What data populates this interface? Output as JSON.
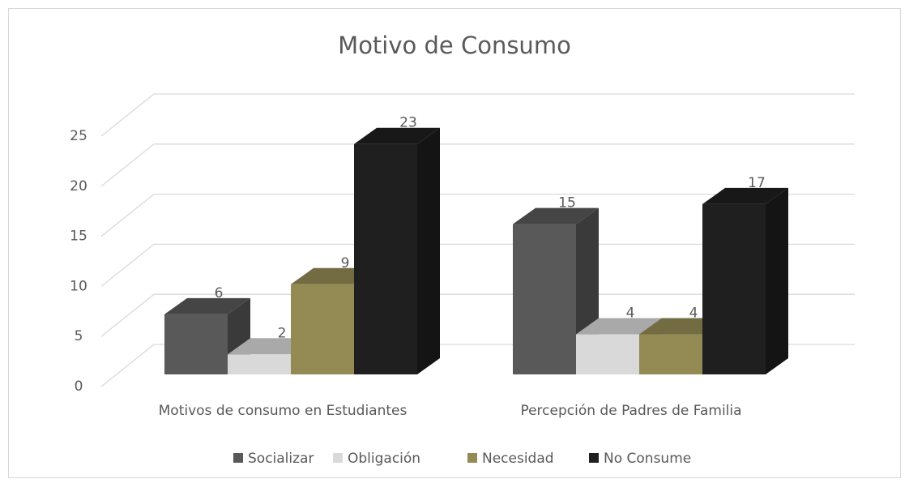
{
  "chart_data": {
    "type": "bar3d",
    "title": "Motivo de Consumo",
    "categories": [
      "Motivos de consumo en Estudiantes",
      "Percepción de Padres de Familia"
    ],
    "series": [
      {
        "name": "Socializar",
        "color": "#595959",
        "values": [
          6,
          15
        ]
      },
      {
        "name": "Obligación",
        "color": "#d9d9d9",
        "values": [
          2,
          4
        ]
      },
      {
        "name": "Necesidad",
        "color": "#948a54",
        "values": [
          9,
          4
        ]
      },
      {
        "name": "No Consume",
        "color": "#1f1f1f",
        "values": [
          23,
          17
        ]
      }
    ],
    "ylim": [
      0,
      25
    ],
    "yticks": [
      0,
      5,
      10,
      15,
      20,
      25
    ],
    "grid": true,
    "legend": "bottom"
  }
}
